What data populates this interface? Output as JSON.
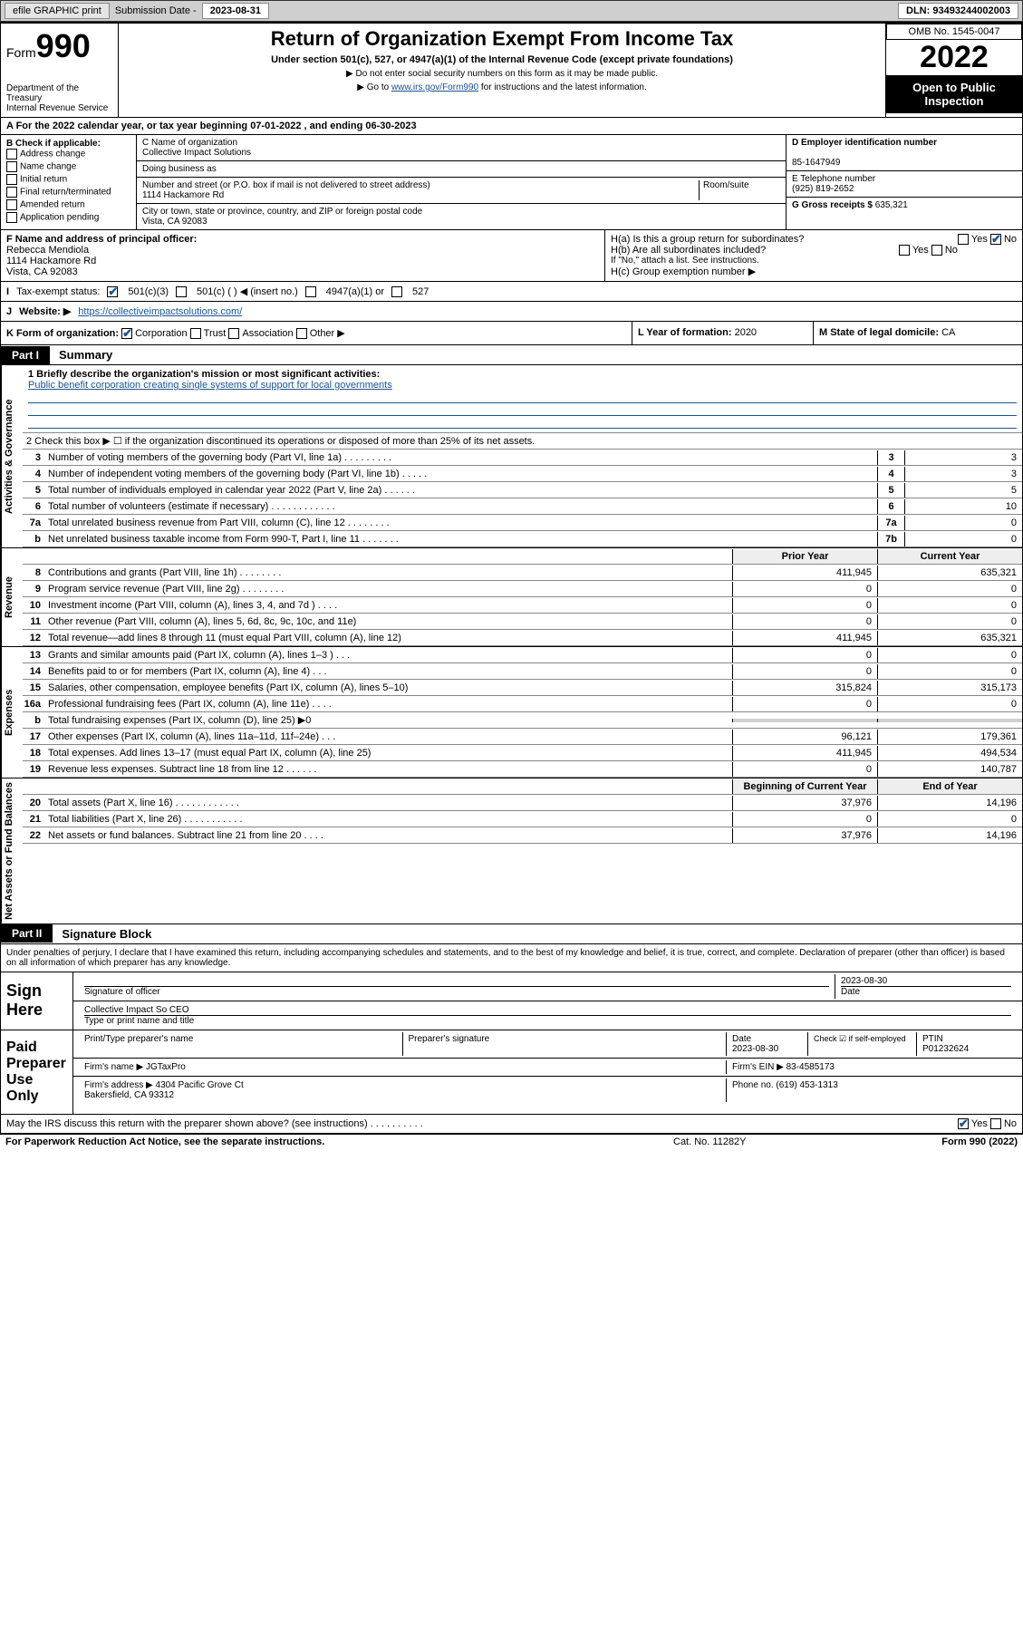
{
  "topbar": {
    "efile": "efile GRAPHIC print",
    "sublabel": "Submission Date -",
    "subdate": "2023-08-31",
    "dln": "DLN: 93493244002003"
  },
  "header": {
    "form": "Form",
    "formnum": "990",
    "dept": "Department of the Treasury",
    "irs": "Internal Revenue Service",
    "title": "Return of Organization Exempt From Income Tax",
    "sub": "Under section 501(c), 527, or 4947(a)(1) of the Internal Revenue Code (except private foundations)",
    "note1": "▶ Do not enter social security numbers on this form as it may be made public.",
    "note2_pre": "▶ Go to ",
    "note2_link": "www.irs.gov/Form990",
    "note2_post": " for instructions and the latest information.",
    "omb": "OMB No. 1545-0047",
    "year": "2022",
    "open": "Open to Public Inspection"
  },
  "rowA": "A For the 2022 calendar year, or tax year beginning 07-01-2022    , and ending 06-30-2023",
  "B": {
    "label": "B Check if applicable:",
    "items": [
      "Address change",
      "Name change",
      "Initial return",
      "Final return/terminated",
      "Amended return",
      "Application pending"
    ]
  },
  "C": {
    "namelabel": "C Name of organization",
    "name": "Collective Impact Solutions",
    "dba": "Doing business as",
    "addrlabel": "Number and street (or P.O. box if mail is not delivered to street address)",
    "room": "Room/suite",
    "addr": "1114 Hackamore Rd",
    "citylabel": "City or town, state or province, country, and ZIP or foreign postal code",
    "city": "Vista, CA  92083"
  },
  "D": {
    "label": "D Employer identification number",
    "val": "85-1647949"
  },
  "E": {
    "label": "E Telephone number",
    "val": "(925) 819-2652"
  },
  "G": {
    "label": "G Gross receipts $",
    "val": "635,321"
  },
  "F": {
    "label": "F Name and address of principal officer:",
    "name": "Rebecca Mendiola",
    "addr": "1114 Hackamore Rd",
    "city": "Vista, CA  92083"
  },
  "H": {
    "a": "H(a)  Is this a group return for subordinates?",
    "b": "H(b)  Are all subordinates included?",
    "bnote": "If \"No,\" attach a list. See instructions.",
    "c": "H(c)  Group exemption number ▶",
    "yes": "Yes",
    "no": "No"
  },
  "I": {
    "label": "Tax-exempt status:",
    "opts": [
      "501(c)(3)",
      "501(c) (   ) ◀ (insert no.)",
      "4947(a)(1) or",
      "527"
    ]
  },
  "J": {
    "label": "Website: ▶",
    "val": "https://collectiveimpactsolutions.com/"
  },
  "K": {
    "label": "K Form of organization:",
    "opts": [
      "Corporation",
      "Trust",
      "Association",
      "Other ▶"
    ]
  },
  "L": {
    "label": "L Year of formation:",
    "val": "2020"
  },
  "M": {
    "label": "M State of legal domicile:",
    "val": "CA"
  },
  "part1": {
    "tab": "Part I",
    "title": "Summary"
  },
  "mission": {
    "label": "1  Briefly describe the organization's mission or most significant activities:",
    "text": "Public benefit corporation creating single systems of support for local governments"
  },
  "line2": "2    Check this box ▶ ☐  if the organization discontinued its operations or disposed of more than 25% of its net assets.",
  "govlines": [
    {
      "n": "3",
      "t": "Number of voting members of the governing body (Part VI, line 1a)  .   .   .   .   .   .   .   .   .",
      "k": "3",
      "v": "3"
    },
    {
      "n": "4",
      "t": "Number of independent voting members of the governing body (Part VI, line 1b)  .   .   .   .   .",
      "k": "4",
      "v": "3"
    },
    {
      "n": "5",
      "t": "Total number of individuals employed in calendar year 2022 (Part V, line 2a)  .   .   .   .   .   .",
      "k": "5",
      "v": "5"
    },
    {
      "n": "6",
      "t": "Total number of volunteers (estimate if necessary)  .   .   .   .   .   .   .   .   .   .   .   .",
      "k": "6",
      "v": "10"
    },
    {
      "n": "7a",
      "t": "Total unrelated business revenue from Part VIII, column (C), line 12  .   .   .   .   .   .   .   .",
      "k": "7a",
      "v": "0"
    },
    {
      "n": "b",
      "t": "Net unrelated business taxable income from Form 990-T, Part I, line 11  .   .   .   .   .   .   .",
      "k": "7b",
      "v": "0"
    }
  ],
  "colhdrs": {
    "prior": "Prior Year",
    "curr": "Current Year",
    "beg": "Beginning of Current Year",
    "end": "End of Year"
  },
  "revenue": [
    {
      "n": "8",
      "t": "Contributions and grants (Part VIII, line 1h)  .   .   .   .   .   .   .   .",
      "p": "411,945",
      "c": "635,321"
    },
    {
      "n": "9",
      "t": "Program service revenue (Part VIII, line 2g)  .   .   .   .   .   .   .   .",
      "p": "0",
      "c": "0"
    },
    {
      "n": "10",
      "t": "Investment income (Part VIII, column (A), lines 3, 4, and 7d )  .   .   .   .",
      "p": "0",
      "c": "0"
    },
    {
      "n": "11",
      "t": "Other revenue (Part VIII, column (A), lines 5, 6d, 8c, 9c, 10c, and 11e)",
      "p": "0",
      "c": "0"
    },
    {
      "n": "12",
      "t": "Total revenue—add lines 8 through 11 (must equal Part VIII, column (A), line 12)",
      "p": "411,945",
      "c": "635,321"
    }
  ],
  "expenses": [
    {
      "n": "13",
      "t": "Grants and similar amounts paid (Part IX, column (A), lines 1–3 )  .   .   .",
      "p": "0",
      "c": "0"
    },
    {
      "n": "14",
      "t": "Benefits paid to or for members (Part IX, column (A), line 4)  .   .   .",
      "p": "0",
      "c": "0"
    },
    {
      "n": "15",
      "t": "Salaries, other compensation, employee benefits (Part IX, column (A), lines 5–10)",
      "p": "315,824",
      "c": "315,173"
    },
    {
      "n": "16a",
      "t": "Professional fundraising fees (Part IX, column (A), line 11e)  .   .   .   .",
      "p": "0",
      "c": "0"
    },
    {
      "n": "b",
      "t": "Total fundraising expenses (Part IX, column (D), line 25) ▶0",
      "p": "",
      "c": "",
      "shade": true
    },
    {
      "n": "17",
      "t": "Other expenses (Part IX, column (A), lines 11a–11d, 11f–24e)  .   .   .",
      "p": "96,121",
      "c": "179,361"
    },
    {
      "n": "18",
      "t": "Total expenses. Add lines 13–17 (must equal Part IX, column (A), line 25)",
      "p": "411,945",
      "c": "494,534"
    },
    {
      "n": "19",
      "t": "Revenue less expenses. Subtract line 18 from line 12  .   .   .   .   .   .",
      "p": "0",
      "c": "140,787"
    }
  ],
  "netassets": [
    {
      "n": "20",
      "t": "Total assets (Part X, line 16)  .   .   .   .   .   .   .   .   .   .   .   .",
      "p": "37,976",
      "c": "14,196"
    },
    {
      "n": "21",
      "t": "Total liabilities (Part X, line 26)  .   .   .   .   .   .   .   .   .   .   .",
      "p": "0",
      "c": "0"
    },
    {
      "n": "22",
      "t": "Net assets or fund balances. Subtract line 21 from line 20  .   .   .   .",
      "p": "37,976",
      "c": "14,196"
    }
  ],
  "vlabels": {
    "gov": "Activities & Governance",
    "rev": "Revenue",
    "exp": "Expenses",
    "net": "Net Assets or Fund Balances"
  },
  "part2": {
    "tab": "Part II",
    "title": "Signature Block"
  },
  "sigtext": "Under penalties of perjury, I declare that I have examined this return, including accompanying schedules and statements, and to the best of my knowledge and belief, it is true, correct, and complete. Declaration of preparer (other than officer) is based on all information of which preparer has any knowledge.",
  "sign": {
    "lab": "Sign Here",
    "sigof": "Signature of officer",
    "date": "2023-08-30",
    "datelab": "Date",
    "name": "Collective Impact So CEO",
    "namelab": "Type or print name and title"
  },
  "preparer": {
    "lab": "Paid Preparer Use Only",
    "h": [
      "Print/Type preparer's name",
      "Preparer's signature",
      "Date",
      "",
      "PTIN"
    ],
    "date": "2023-08-30",
    "check": "Check ☑ if self-employed",
    "ptin": "P01232624",
    "firmname": "Firm's name   ▶ JGTaxPro",
    "ein": "Firm's EIN ▶ 83-4585173",
    "firmaddr": "Firm's address ▶ 4304 Pacific Grove Ct",
    "firmcity": "Bakersfield, CA  93312",
    "phone": "Phone no. (619) 453-1313"
  },
  "discuss": "May the IRS discuss this return with the preparer shown above? (see instructions)  .   .   .   .   .   .   .   .   .   .",
  "footer": {
    "l": "For Paperwork Reduction Act Notice, see the separate instructions.",
    "m": "Cat. No. 11282Y",
    "r": "Form 990 (2022)"
  }
}
